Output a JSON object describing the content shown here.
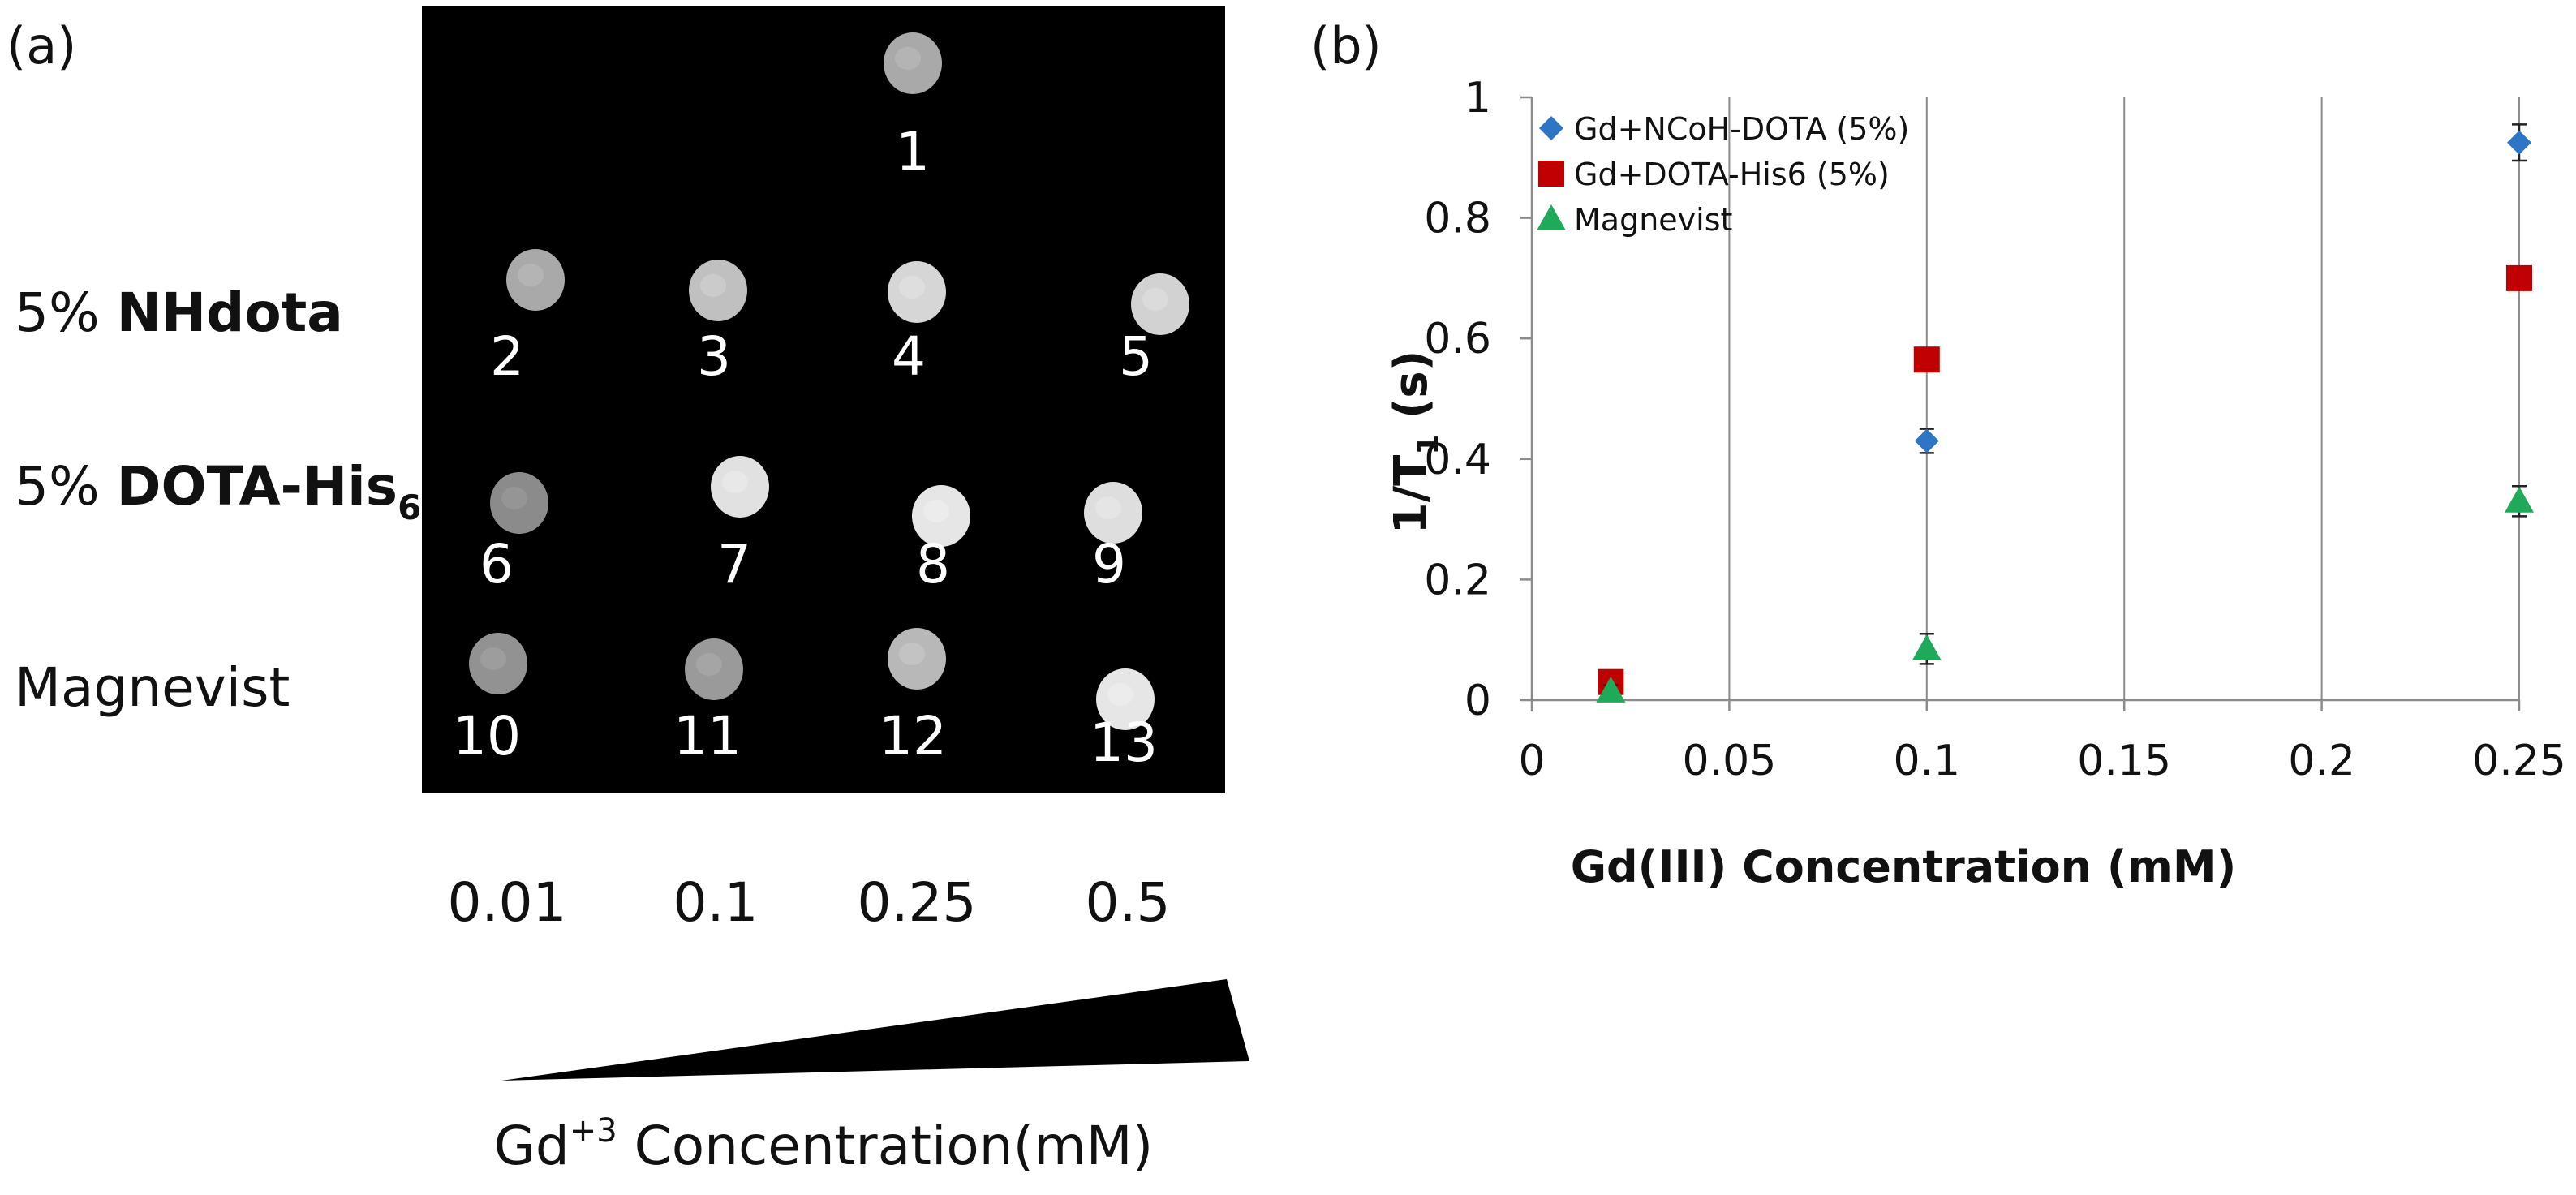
{
  "panel_a": {
    "label": "(a)",
    "row_labels": [
      {
        "prefix": "5% ",
        "name": "NHdota",
        "sub": ""
      },
      {
        "prefix": "5% ",
        "name": "DOTA-His",
        "sub": "6"
      },
      {
        "prefix": "",
        "name": "Magnevist",
        "sub": ""
      }
    ],
    "concentrations": [
      "0.01",
      "0.1",
      "0.25",
      "0.5"
    ],
    "wells": [
      {
        "number": "1",
        "brightness": 0.55
      },
      {
        "number": "2",
        "brightness": 0.55
      },
      {
        "number": "3",
        "brightness": 0.7
      },
      {
        "number": "4",
        "brightness": 0.85
      },
      {
        "number": "5",
        "brightness": 0.82
      },
      {
        "number": "6",
        "brightness": 0.35
      },
      {
        "number": "7",
        "brightness": 0.92
      },
      {
        "number": "8",
        "brightness": 0.95
      },
      {
        "number": "9",
        "brightness": 0.9
      },
      {
        "number": "10",
        "brightness": 0.4
      },
      {
        "number": "11",
        "brightness": 0.45
      },
      {
        "number": "12",
        "brightness": 0.65
      },
      {
        "number": "13",
        "brightness": 0.95
      }
    ],
    "axis_label_prefix": "Gd",
    "axis_label_sup": "+3",
    "axis_label_suffix": " Concentration(mM)"
  },
  "chart_data": {
    "type": "scatter",
    "panel_label": "(b)",
    "title": "",
    "xlabel": "Gd(III) Concentration (mM)",
    "ylabel_main": "1/T",
    "ylabel_sub": "1",
    "ylabel_suffix": " (s)",
    "xlim": [
      0,
      0.25
    ],
    "ylim": [
      0,
      1
    ],
    "x_ticks": [
      "0",
      "0.05",
      "0.1",
      "0.15",
      "0.2",
      "0.25"
    ],
    "y_ticks": [
      "0",
      "0.2",
      "0.4",
      "0.6",
      "0.8",
      "1"
    ],
    "grid": "vertical",
    "legend_position": "top-left",
    "series": [
      {
        "name": "Gd+NCoH-DOTA (5%)",
        "marker": "diamond",
        "color": "#2E75C5",
        "points": [
          {
            "x": 0.1,
            "y": 0.43,
            "err": 0.02
          },
          {
            "x": 0.25,
            "y": 0.925,
            "err": 0.03
          }
        ]
      },
      {
        "name": "Gd+DOTA-His6 (5%)",
        "marker": "square",
        "color": "#C00000",
        "points": [
          {
            "x": 0.02,
            "y": 0.03,
            "err": 0.0
          },
          {
            "x": 0.1,
            "y": 0.565,
            "err": 0.0
          },
          {
            "x": 0.25,
            "y": 0.7,
            "err": 0.0
          }
        ]
      },
      {
        "name": "Magnevist",
        "marker": "triangle",
        "color": "#1FAA5A",
        "points": [
          {
            "x": 0.02,
            "y": 0.015,
            "err": 0.01
          },
          {
            "x": 0.1,
            "y": 0.085,
            "err": 0.025
          },
          {
            "x": 0.25,
            "y": 0.33,
            "err": 0.025
          }
        ]
      }
    ]
  }
}
